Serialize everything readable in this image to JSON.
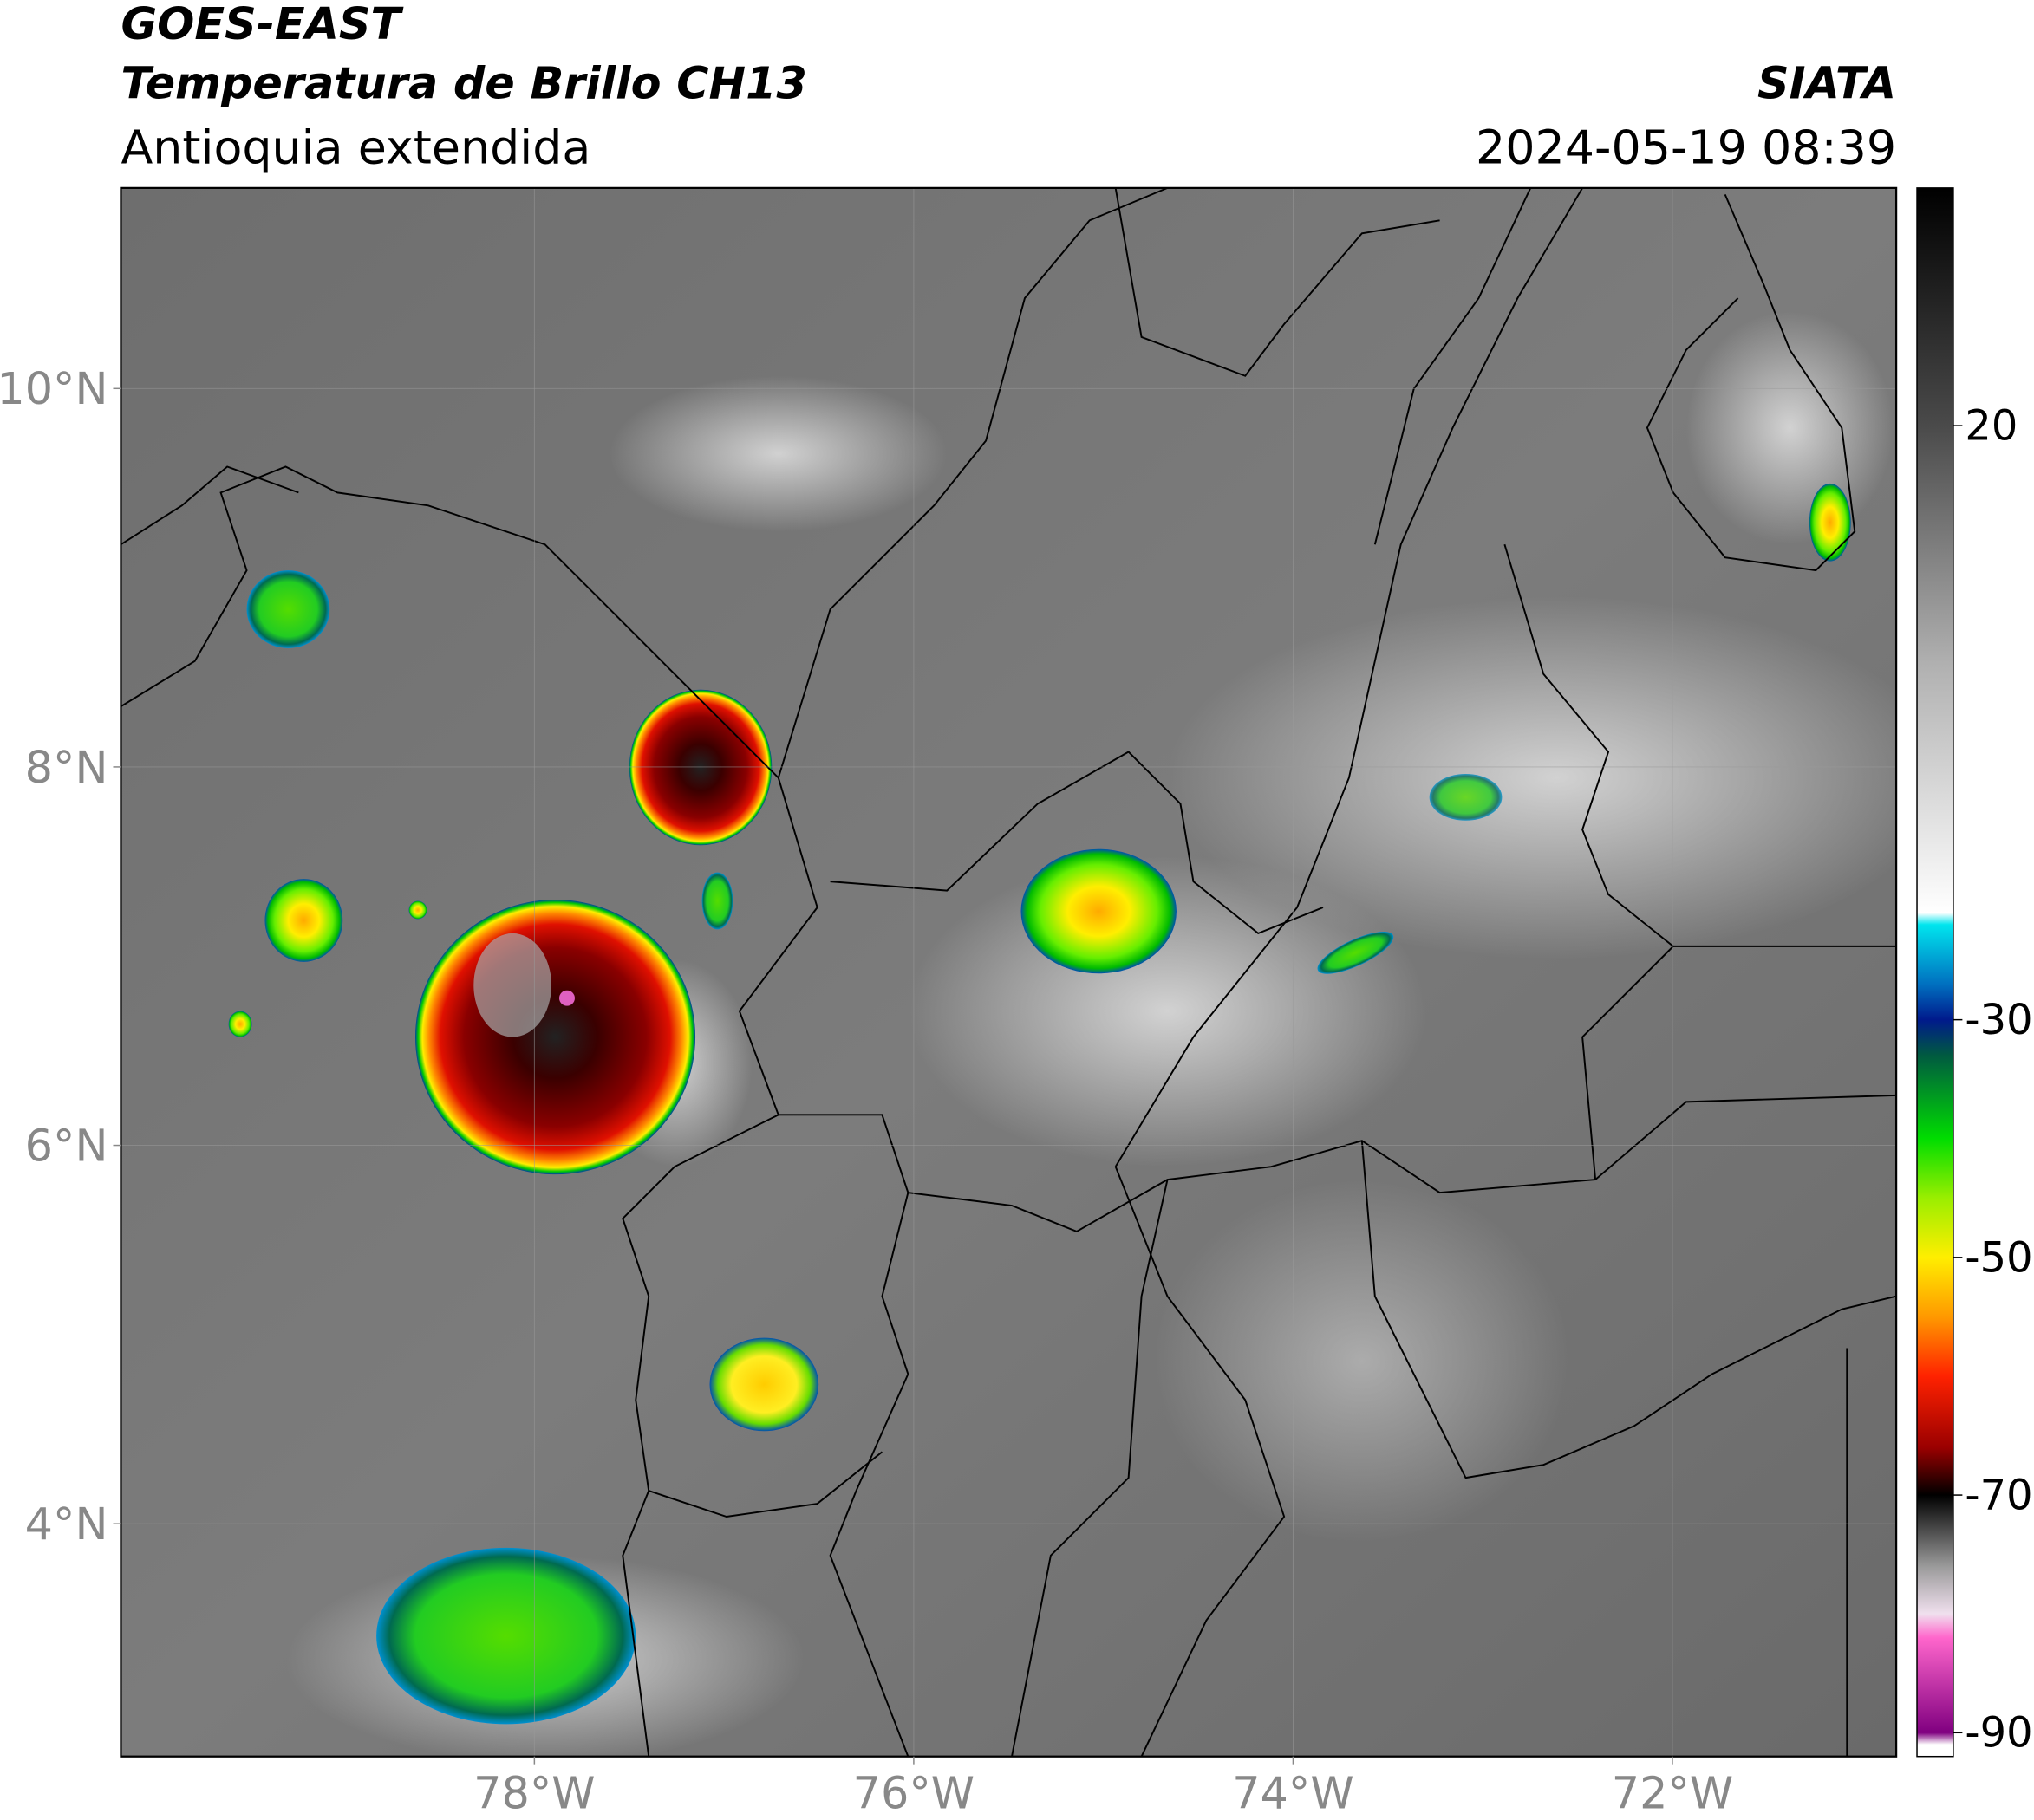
{
  "header": {
    "title_line1": "GOES-EAST",
    "title_line2": "Temperatura de Brillo CH13",
    "subtitle": "Antioquia extendida",
    "source": "SIATA",
    "datetime": "2024-05-19 08:39"
  },
  "map": {
    "lonlim": [
      -80.18,
      -70.82
    ],
    "latlim": [
      2.77,
      11.06
    ],
    "lon_ticks": [
      {
        "value": -78,
        "label": "78°W"
      },
      {
        "value": -76,
        "label": "76°W"
      },
      {
        "value": -74,
        "label": "74°W"
      },
      {
        "value": -72,
        "label": "72°W"
      }
    ],
    "lat_ticks": [
      {
        "value": 10,
        "label": "10°N"
      },
      {
        "value": 8,
        "label": "8°N"
      },
      {
        "value": 6,
        "label": "6°N"
      },
      {
        "value": 4,
        "label": "4°N"
      }
    ]
  },
  "colorbar": {
    "lim": [
      -92,
      40
    ],
    "ticks": [
      20,
      -30,
      -50,
      -70,
      -90
    ],
    "colormap": [
      {
        "value": 40,
        "color": "#000000"
      },
      {
        "value": 20,
        "color": "#4a4a4a"
      },
      {
        "value": 0,
        "color": "#b0b0b0"
      },
      {
        "value": -21,
        "color": "#ffffff"
      },
      {
        "value": -22,
        "color": "#00e5ee"
      },
      {
        "value": -27,
        "color": "#0070c0"
      },
      {
        "value": -30,
        "color": "#001a8c"
      },
      {
        "value": -33,
        "color": "#005a40"
      },
      {
        "value": -40,
        "color": "#00dd00"
      },
      {
        "value": -45,
        "color": "#9aee00"
      },
      {
        "value": -50,
        "color": "#ffee00"
      },
      {
        "value": -55,
        "color": "#ff9900"
      },
      {
        "value": -60,
        "color": "#ff2200"
      },
      {
        "value": -66,
        "color": "#9a0000"
      },
      {
        "value": -70,
        "color": "#000000"
      },
      {
        "value": -76,
        "color": "#9a9a9a"
      },
      {
        "value": -80,
        "color": "#f0e0ee"
      },
      {
        "value": -82,
        "color": "#ff66cc"
      },
      {
        "value": -90,
        "color": "#800080"
      },
      {
        "value": -91,
        "color": "#ffffff"
      }
    ]
  }
}
